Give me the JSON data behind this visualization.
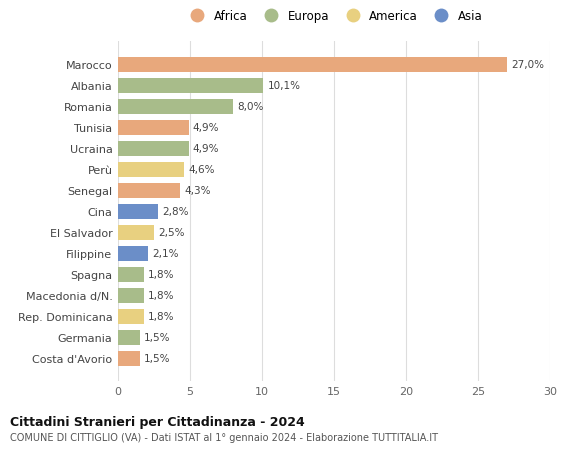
{
  "countries": [
    "Costa d'Avorio",
    "Germania",
    "Rep. Dominicana",
    "Macedonia d/N.",
    "Spagna",
    "Filippine",
    "El Salvador",
    "Cina",
    "Senegal",
    "Perù",
    "Ucraina",
    "Tunisia",
    "Romania",
    "Albania",
    "Marocco"
  ],
  "values": [
    1.5,
    1.5,
    1.8,
    1.8,
    1.8,
    2.1,
    2.5,
    2.8,
    4.3,
    4.6,
    4.9,
    4.9,
    8.0,
    10.1,
    27.0
  ],
  "continents": [
    "Africa",
    "Europa",
    "America",
    "Europa",
    "Europa",
    "Asia",
    "America",
    "Asia",
    "Africa",
    "America",
    "Europa",
    "Africa",
    "Europa",
    "Europa",
    "Africa"
  ],
  "colors": {
    "Africa": "#E8A87C",
    "Europa": "#A8BC8A",
    "America": "#E8D080",
    "Asia": "#6B8EC8"
  },
  "legend_order": [
    "Africa",
    "Europa",
    "America",
    "Asia"
  ],
  "title": "Cittadini Stranieri per Cittadinanza - 2024",
  "subtitle": "COMUNE DI CITTIGLIO (VA) - Dati ISTAT al 1° gennaio 2024 - Elaborazione TUTTITALIA.IT",
  "xlim": [
    0,
    30
  ],
  "xticks": [
    0,
    5,
    10,
    15,
    20,
    25,
    30
  ],
  "bg_color": "#ffffff",
  "grid_color": "#dddddd",
  "bar_height": 0.72
}
